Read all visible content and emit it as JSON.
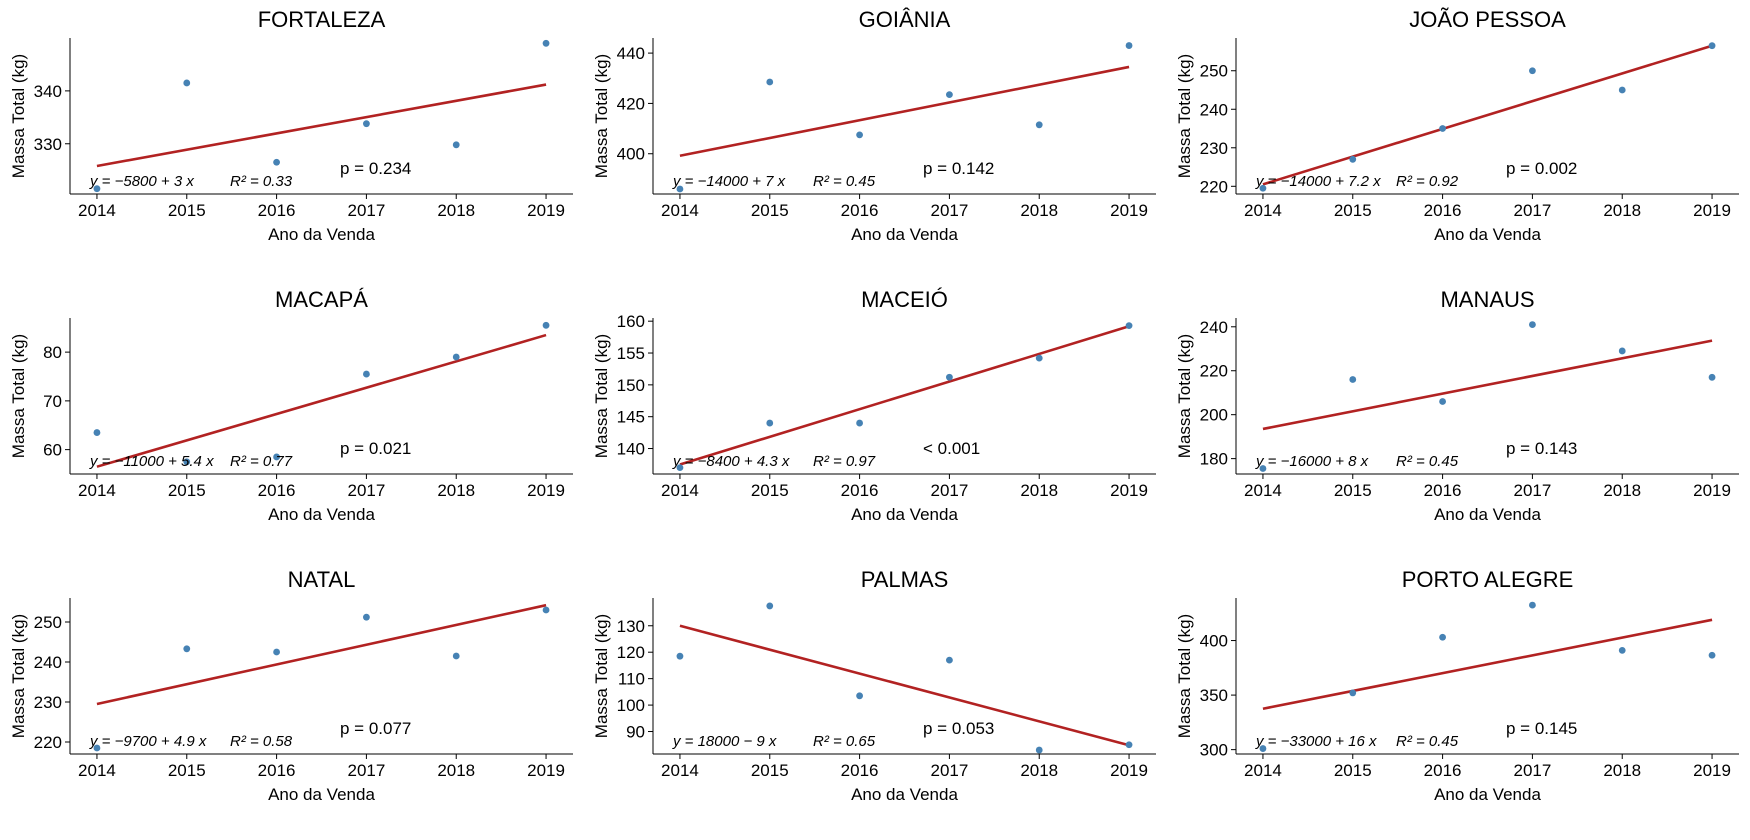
{
  "figure": {
    "point_color": "#4682B4",
    "line_color": "#B22222"
  },
  "chart_data": [
    {
      "type": "scatter",
      "title": "FORTALEZA",
      "xlabel": "Ano da Venda",
      "ylabel": "Massa Total (kg)",
      "x": [
        2014,
        2015,
        2016,
        2017,
        2018,
        2019
      ],
      "y": [
        321.5,
        341.5,
        326.5,
        333.8,
        329.8,
        349.0
      ],
      "xticks": [
        "2014",
        "2015",
        "2016",
        "2017",
        "2018",
        "2019"
      ],
      "yticks": [
        330,
        340
      ],
      "ylim": [
        320.5,
        350.0
      ],
      "fit": {
        "y_start": 325.8,
        "y_end": 341.2
      },
      "annotation": {
        "equation": "y = −5800 + 3 x",
        "r2": "R² = 0.33",
        "pvalue": "p = 0.234"
      }
    },
    {
      "type": "scatter",
      "title": "GOIÂNIA",
      "xlabel": "Ano da Venda",
      "ylabel": "Massa Total (kg)",
      "x": [
        2014,
        2015,
        2016,
        2017,
        2018,
        2019
      ],
      "y": [
        386.0,
        428.5,
        407.5,
        423.5,
        411.5,
        443.0
      ],
      "xticks": [
        "2014",
        "2015",
        "2016",
        "2017",
        "2018",
        "2019"
      ],
      "yticks": [
        400,
        420,
        440
      ],
      "ylim": [
        384.0,
        446.0
      ],
      "fit": {
        "y_start": 399.2,
        "y_end": 434.5
      },
      "annotation": {
        "equation": "y = −14000 + 7 x",
        "r2": "R² = 0.45",
        "pvalue": "p = 0.142"
      }
    },
    {
      "type": "scatter",
      "title": "JOÃO PESSOA",
      "xlabel": "Ano da Venda",
      "ylabel": "Massa Total (kg)",
      "x": [
        2014,
        2015,
        2016,
        2017,
        2018,
        2019
      ],
      "y": [
        219.5,
        227.0,
        235.0,
        250.0,
        245.0,
        256.5
      ],
      "xticks": [
        "2014",
        "2015",
        "2016",
        "2017",
        "2018",
        "2019"
      ],
      "yticks": [
        220,
        230,
        240,
        250
      ],
      "ylim": [
        218.0,
        258.5
      ],
      "fit": {
        "y_start": 220.5,
        "y_end": 256.5
      },
      "annotation": {
        "equation": "y = −14000 + 7.2 x",
        "r2": "R² = 0.92",
        "pvalue": "p = 0.002"
      }
    },
    {
      "type": "scatter",
      "title": "MACAPÁ",
      "xlabel": "Ano da Venda",
      "ylabel": "Massa Total (kg)",
      "x": [
        2014,
        2015,
        2016,
        2017,
        2018,
        2019
      ],
      "y": [
        63.5,
        57.5,
        58.5,
        75.5,
        79.0,
        85.5
      ],
      "xticks": [
        "2014",
        "2015",
        "2016",
        "2017",
        "2018",
        "2019"
      ],
      "yticks": [
        60,
        70,
        80
      ],
      "ylim": [
        55.0,
        87.0
      ],
      "fit": {
        "y_start": 56.5,
        "y_end": 83.5
      },
      "annotation": {
        "equation": "y = −11000 + 5.4 x",
        "r2": "R² = 0.77",
        "pvalue": "p = 0.021"
      }
    },
    {
      "type": "scatter",
      "title": "MACEIÓ",
      "xlabel": "Ano da Venda",
      "ylabel": "Massa Total (kg)",
      "x": [
        2014,
        2015,
        2016,
        2017,
        2018,
        2019
      ],
      "y": [
        137.0,
        144.0,
        144.0,
        151.2,
        154.2,
        159.3
      ],
      "xticks": [
        "2014",
        "2015",
        "2016",
        "2017",
        "2018",
        "2019"
      ],
      "yticks": [
        140,
        145,
        150,
        155,
        160
      ],
      "ylim": [
        136.0,
        160.5
      ],
      "fit": {
        "y_start": 137.5,
        "y_end": 159.2
      },
      "annotation": {
        "equation": "y = −8400 + 4.3 x",
        "r2": "R² = 0.97",
        "pvalue": "< 0.001"
      }
    },
    {
      "type": "scatter",
      "title": "MANAUS",
      "xlabel": "Ano da Venda",
      "ylabel": "Massa Total (kg)",
      "x": [
        2014,
        2015,
        2016,
        2017,
        2018,
        2019
      ],
      "y": [
        175.5,
        216.0,
        206.0,
        241.0,
        229.0,
        217.0
      ],
      "xticks": [
        "2014",
        "2015",
        "2016",
        "2017",
        "2018",
        "2019"
      ],
      "yticks": [
        180,
        200,
        220,
        240
      ],
      "ylim": [
        173.0,
        244.0
      ],
      "fit": {
        "y_start": 193.5,
        "y_end": 233.7
      },
      "annotation": {
        "equation": "y = −16000 + 8 x",
        "r2": "R² = 0.45",
        "pvalue": "p = 0.143"
      }
    },
    {
      "type": "scatter",
      "title": "NATAL",
      "xlabel": "Ano da Venda",
      "ylabel": "Massa Total (kg)",
      "x": [
        2014,
        2015,
        2016,
        2017,
        2018,
        2019
      ],
      "y": [
        218.5,
        243.3,
        242.5,
        251.2,
        241.5,
        253.0
      ],
      "xticks": [
        "2014",
        "2015",
        "2016",
        "2017",
        "2018",
        "2019"
      ],
      "yticks": [
        220,
        230,
        240,
        250
      ],
      "ylim": [
        217.0,
        256.0
      ],
      "fit": {
        "y_start": 229.5,
        "y_end": 254.2
      },
      "annotation": {
        "equation": "y = −9700 + 4.9 x",
        "r2": "R² = 0.58",
        "pvalue": "p = 0.077"
      }
    },
    {
      "type": "scatter",
      "title": "PALMAS",
      "xlabel": "Ano da Venda",
      "ylabel": "Massa Total (kg)",
      "x": [
        2014,
        2015,
        2016,
        2017,
        2018,
        2019
      ],
      "y": [
        118.5,
        137.5,
        103.5,
        117.0,
        83.0,
        85.0
      ],
      "xticks": [
        "2014",
        "2015",
        "2016",
        "2017",
        "2018",
        "2019"
      ],
      "yticks": [
        90,
        100,
        110,
        120,
        130
      ],
      "ylim": [
        81.5,
        140.5
      ],
      "fit": {
        "y_start": 130.0,
        "y_end": 84.8
      },
      "annotation": {
        "equation": "y = 18000 − 9 x",
        "r2": "R² = 0.65",
        "pvalue": "p = 0.053"
      }
    },
    {
      "type": "scatter",
      "title": "PORTO ALEGRE",
      "xlabel": "Ano da Venda",
      "ylabel": "Massa Total (kg)",
      "x": [
        2014,
        2015,
        2016,
        2017,
        2018,
        2019
      ],
      "y": [
        301.0,
        352.0,
        403.0,
        432.5,
        391.0,
        386.5
      ],
      "xticks": [
        "2014",
        "2015",
        "2016",
        "2017",
        "2018",
        "2019"
      ],
      "yticks": [
        300,
        350,
        400
      ],
      "ylim": [
        296.0,
        439.0
      ],
      "fit": {
        "y_start": 337.5,
        "y_end": 419.0
      },
      "annotation": {
        "equation": "y = −33000 + 16 x",
        "r2": "R² = 0.45",
        "pvalue": "p = 0.145"
      }
    }
  ]
}
